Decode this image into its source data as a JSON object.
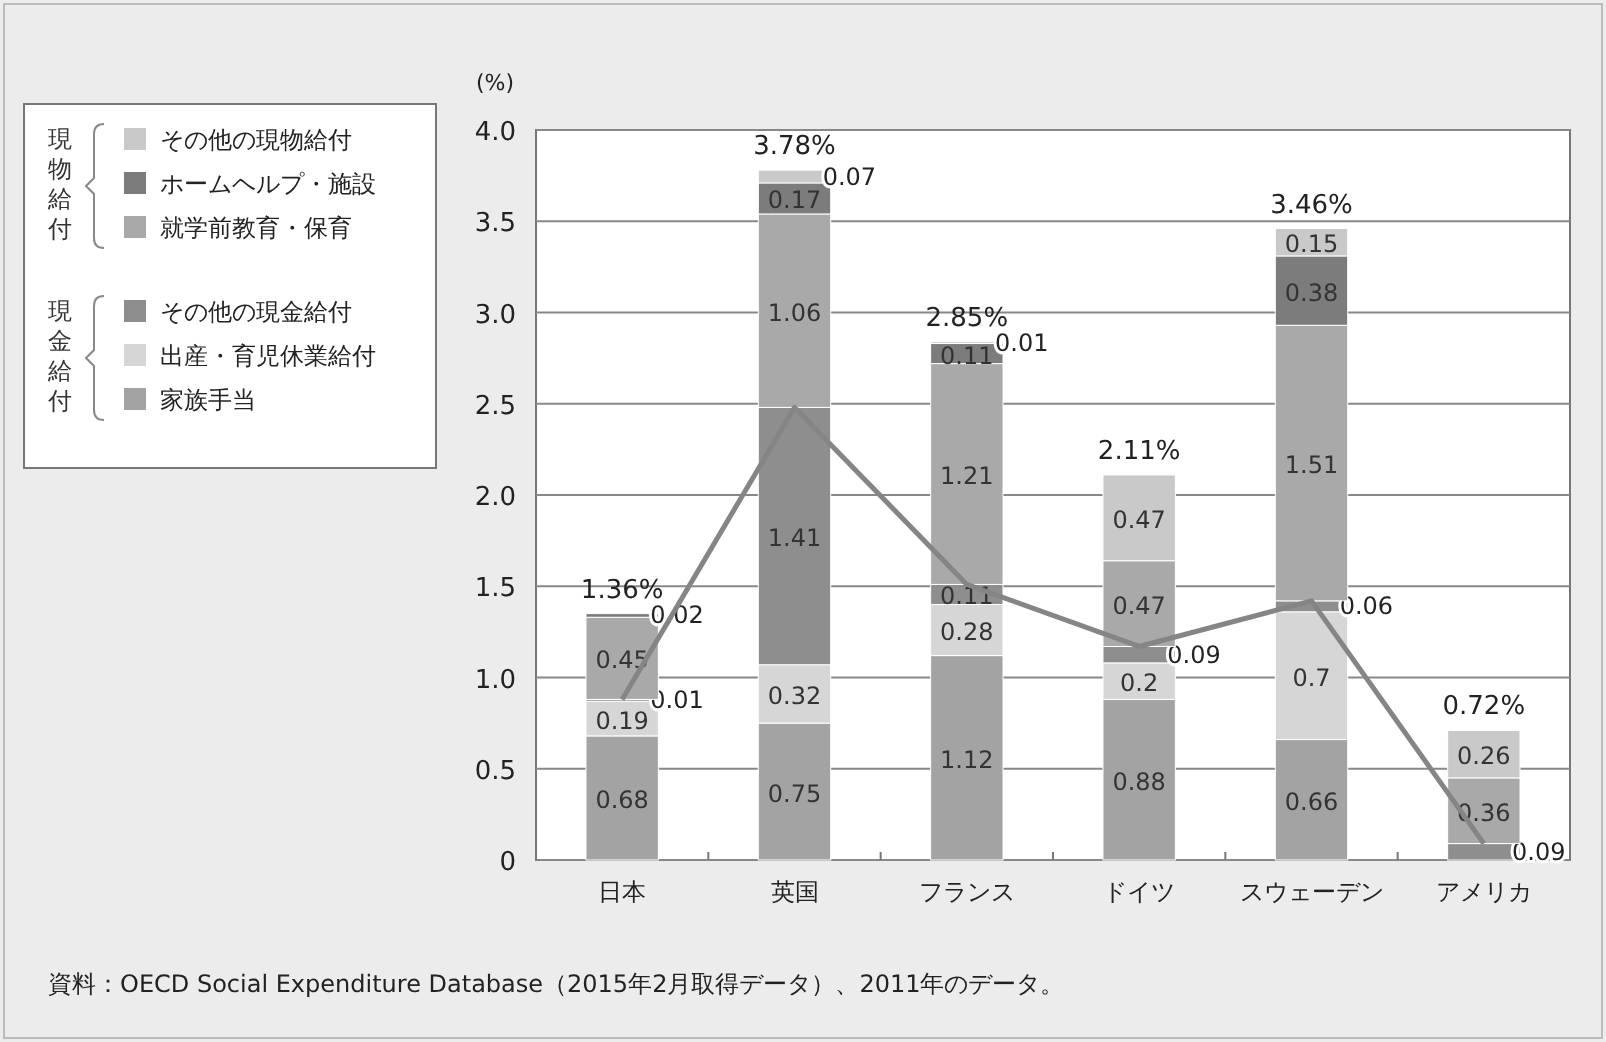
{
  "chart_data": {
    "type": "bar",
    "stacked": true,
    "ylabel": "(%)",
    "categories": [
      "日本",
      "英国",
      "フランス",
      "ドイツ",
      "スウェーデン",
      "アメリカ"
    ],
    "series": [
      {
        "name": "家族手当",
        "color": "#a3a3a3",
        "values": [
          0.68,
          0.75,
          1.12,
          0.88,
          0.66,
          0
        ],
        "value_labels": [
          "0.68",
          "0.75",
          "1.12",
          "0.88",
          "0.66",
          null
        ]
      },
      {
        "name": "出産・育児休業給付",
        "color": "#d6d6d6",
        "values": [
          0.19,
          0.32,
          0.28,
          0.2,
          0.7,
          0
        ],
        "value_labels": [
          "0.19",
          "0.32",
          "0.28",
          "0.2",
          "0.7",
          null
        ]
      },
      {
        "name": "その他の現金給付",
        "color": "#8e8e8e",
        "values": [
          0.01,
          1.41,
          0.11,
          0.09,
          0.06,
          0.09
        ],
        "value_labels": [
          "0.01",
          "1.41",
          "0.11",
          "0.09",
          "0.06",
          "0.09"
        ]
      },
      {
        "name": "就学前教育・保育",
        "color": "#a9a9a9",
        "values": [
          0.45,
          1.06,
          1.21,
          0.47,
          1.51,
          0.36
        ],
        "value_labels": [
          "0.45",
          "1.06",
          "1.21",
          "0.47",
          "1.51",
          "0.36"
        ]
      },
      {
        "name": "ホームヘルプ・施設",
        "color": "#7c7c7c",
        "values": [
          0.02,
          0.17,
          0.11,
          0,
          0.38,
          0
        ],
        "value_labels": [
          "0.02",
          "0.17",
          "0.11",
          null,
          "0.38",
          null
        ]
      },
      {
        "name": "その他の現物給付",
        "color": "#c9c9c9",
        "values": [
          0,
          0.07,
          0.01,
          0.47,
          0.15,
          0.26
        ],
        "value_labels": [
          null,
          "0.07",
          "0.01",
          "0.47",
          "0.15",
          "0.26"
        ]
      },
      {
        "type": "line",
        "color": "#858585",
        "values": [
          0.88,
          2.48,
          1.51,
          1.17,
          1.42,
          0.09
        ]
      }
    ],
    "totals": [
      "1.36%",
      "3.78%",
      "2.85%",
      "2.11%",
      "3.46%",
      "0.72%"
    ],
    "ylim": [
      0,
      4
    ],
    "yticks": [
      0,
      0.5,
      {
        "value": 1,
        "label": "1.0"
      },
      1.5,
      {
        "value": 2,
        "label": "2.0"
      },
      2.5,
      {
        "value": 3,
        "label": "3.0"
      },
      3.5,
      {
        "value": 4,
        "label": "4.0"
      }
    ],
    "grid": "y",
    "legend": "top left",
    "annotations": [
      "現物給付",
      "現金給付",
      "資料：OECD Social Expenditure Database（2015年2月取得データ）、2011年のデータ。"
    ]
  }
}
